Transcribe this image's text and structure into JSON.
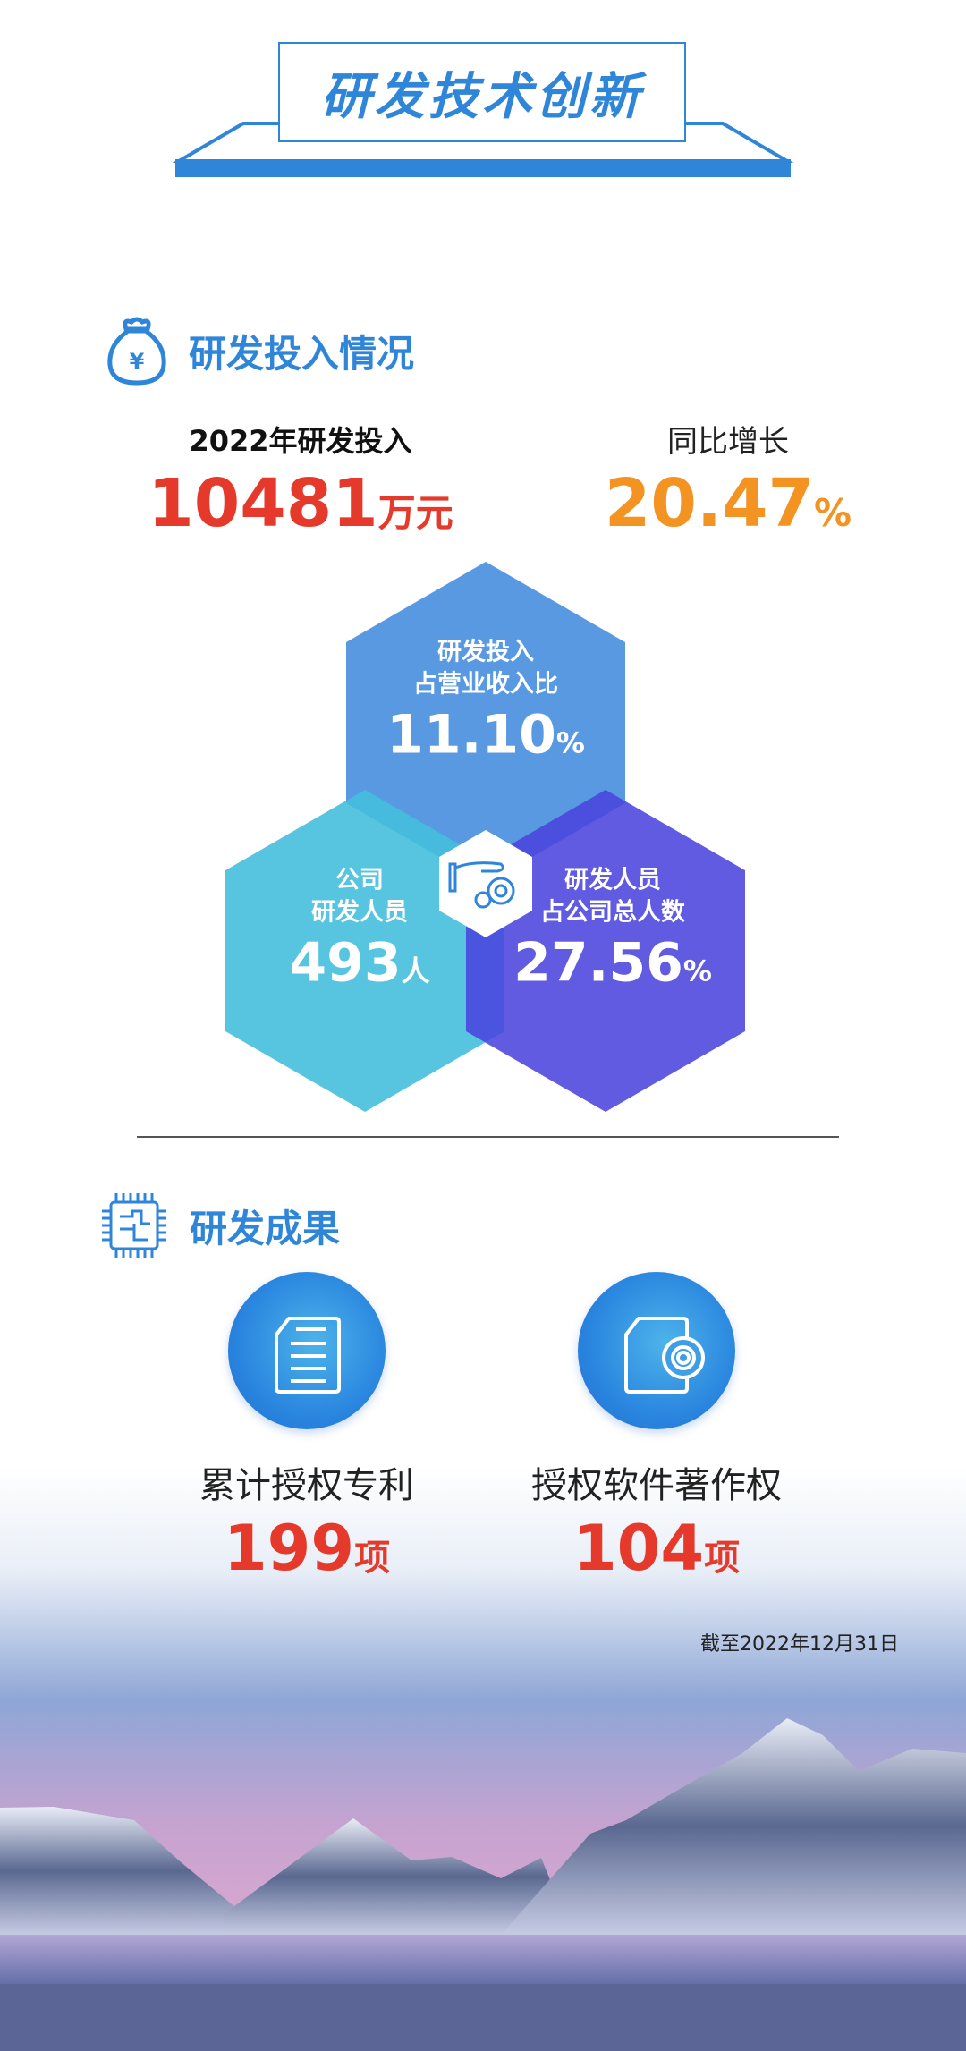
{
  "header": {
    "title": "研发技术创新"
  },
  "investment": {
    "section_title": "研发投入情况",
    "icon": "money-bag-icon",
    "rd_investment": {
      "label": "2022年研发投入",
      "value": "10481",
      "unit": "万元"
    },
    "growth": {
      "label": "同比增长",
      "value": "20.47",
      "unit": "%"
    },
    "hexagons": [
      {
        "line1": "研发投入",
        "line2": "占营业收入比",
        "value": "11.10",
        "unit": "%",
        "color": "#4a90e0"
      },
      {
        "line1": "公司",
        "line2": "研发人员",
        "value": "493",
        "unit": "人",
        "color": "#4fc3df"
      },
      {
        "line1": "研发人员",
        "line2": "占公司总人数",
        "value": "27.56",
        "unit": "%",
        "color": "#5a55e0"
      }
    ],
    "center_icon": "hand-gear-icon"
  },
  "results": {
    "section_title": "研发成果",
    "icon": "chip-icon",
    "items": [
      {
        "icon": "document-icon",
        "label": "累计授权专利",
        "value": "199",
        "unit": "项"
      },
      {
        "icon": "document-gear-icon",
        "label": "授权软件著作权",
        "value": "104",
        "unit": "项"
      }
    ],
    "as_of": "截至2022年12月31日"
  },
  "colors": {
    "brand_blue": "#2f86d9",
    "red": "#e53a2b",
    "orange": "#f39322"
  }
}
